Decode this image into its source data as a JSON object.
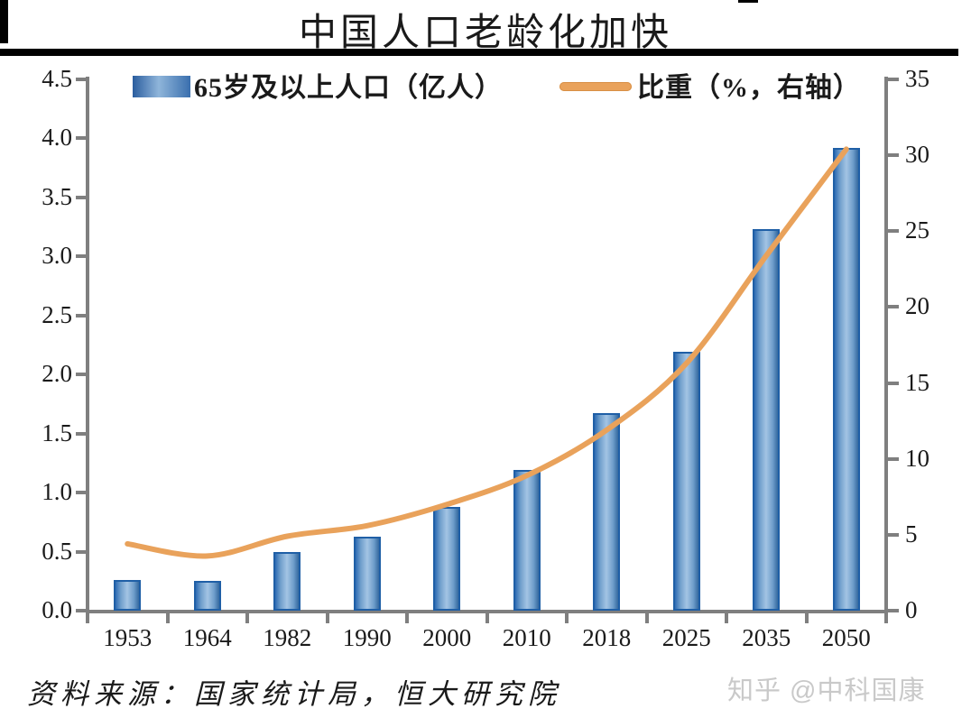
{
  "title": "中国人口老龄化加快",
  "legend": {
    "bars_label": "65岁及以上人口（亿人）",
    "line_label": "比重（%，右轴）"
  },
  "source_note": "资料来源：国家统计局，恒大研究院",
  "watermark": "知乎 @中科国康",
  "colors": {
    "bar_edge": "#2e6cb4",
    "bar_center": "#a3c4e4",
    "bar_border": "#1f5fa6",
    "line": "#e9a25b",
    "axis": "#7f7f7f",
    "text": "#1a1a1a",
    "watermark": "#c9c9c9"
  },
  "chart_data": {
    "type": "bar",
    "subtype": "bar+line combo",
    "title": "中国人口老龄化加快",
    "categories": [
      "1953",
      "1964",
      "1982",
      "1990",
      "2000",
      "2010",
      "2018",
      "2025",
      "2035",
      "2050"
    ],
    "series": [
      {
        "name": "65岁及以上人口（亿人）",
        "type": "bar",
        "axis": "left",
        "values": [
          0.26,
          0.25,
          0.5,
          0.63,
          0.88,
          1.19,
          1.67,
          2.19,
          3.23,
          3.92
        ]
      },
      {
        "name": "比重（%，右轴）",
        "type": "line",
        "axis": "right",
        "values": [
          4.4,
          3.6,
          4.9,
          5.6,
          7.0,
          8.9,
          11.9,
          16.3,
          23.4,
          30.4
        ]
      }
    ],
    "left_axis": {
      "min": 0,
      "max": 4.5,
      "tick_step": 0.5,
      "ticks": [
        "0.0",
        "0.5",
        "1.0",
        "1.5",
        "2.0",
        "2.5",
        "3.0",
        "3.5",
        "4.0",
        "4.5"
      ]
    },
    "right_axis": {
      "min": 0,
      "max": 35,
      "tick_step": 5,
      "ticks": [
        "0",
        "5",
        "10",
        "15",
        "20",
        "25",
        "30",
        "35"
      ]
    },
    "grid": false,
    "legend_position": "top"
  }
}
